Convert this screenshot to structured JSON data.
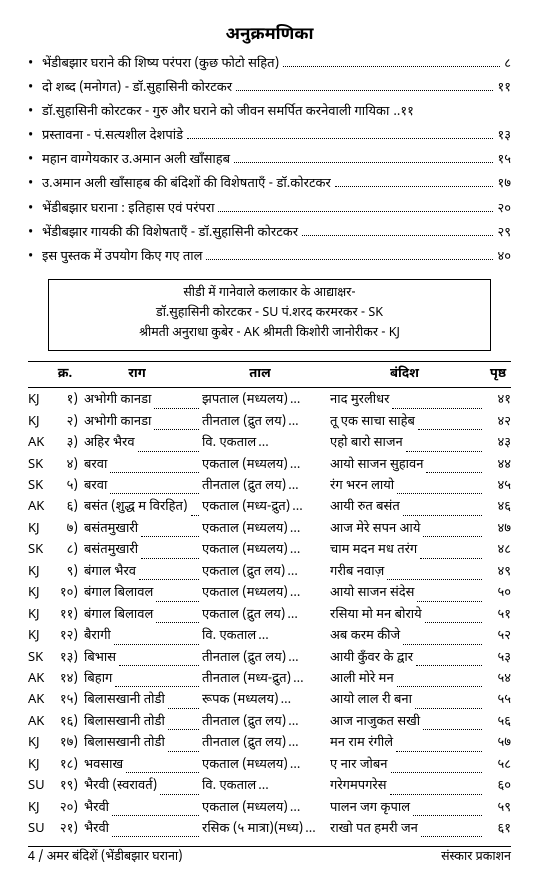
{
  "title": "अनुक्रमणिका",
  "toc": [
    {
      "text": "भेंडीबझार घराने की शिष्य परंपरा (कुछ फोटो सहित)",
      "page": "८"
    },
    {
      "text": "दो शब्द (मनोगत)   -  डॉ.सुहासिनी कोरटकर",
      "page": "११"
    },
    {
      "text": "डॉ.सुहासिनी कोरटकर - गुरु और घराने को जीवन समर्पित करनेवाली गायिका",
      "page": "११",
      "no_leader": true
    },
    {
      "text": "प्रस्तावना   -  पं.सत्यशील देशपांडे",
      "page": "१३"
    },
    {
      "text": "महान वाग्गेयकार उ.अमान अली खाँसाहब",
      "page": "१५"
    },
    {
      "text": "उ.अमान अली खाँसाहब की बंदिशों की विशेषताएँ   -  डॉ.कोरटकर",
      "page": "१७"
    },
    {
      "text": "भेंडीबझार घराना  :  इतिहास एवं परंपरा",
      "page": "२०"
    },
    {
      "text": "भेंडीबझार गायकी की विशेषताएँ   -  डॉ.सुहासिनी कोरटकर",
      "page": "२९"
    },
    {
      "text": "इस पुस्तक में उपयोग किए गए ताल",
      "page": "४०"
    }
  ],
  "artistbox": {
    "line1": "सीडी में गानेवाले कलाकार के आद्याक्षर-",
    "line2": "डॉ.सुहासिनी कोरटकर - SU      पं.शरद करमरकर - SK",
    "line3": "श्रीमती अनुराधा कुबेर - AK      श्रीमती किशोरी जानोरीकर - KJ"
  },
  "headers": {
    "no": "क्र.",
    "raag": "राग",
    "taal": "ताल",
    "band": "बंदिश",
    "page": "पृष्ठ"
  },
  "rows": [
    {
      "a": "KJ",
      "n": "१)",
      "r": "अभोगी कानडा",
      "t": "झपताल (मध्यलय)",
      "b": "नाद मुरलीधर",
      "p": "४१"
    },
    {
      "a": "KJ",
      "n": "२)",
      "r": "अभोगी कानडा",
      "t": "तीनताल (द्रुत लय)",
      "b": "तू एक साचा साहेब",
      "p": "४२"
    },
    {
      "a": "AK",
      "n": "३)",
      "r": "अहिर भैरव",
      "t": "वि. एकताल",
      "b": "एहो बारो साजन",
      "p": "४३"
    },
    {
      "a": "SK",
      "n": "४)",
      "r": "बरवा",
      "t": "एकताल (मध्यलय)",
      "b": "आयो साजन सुहावन",
      "p": "४४"
    },
    {
      "a": "SK",
      "n": "५)",
      "r": "बरवा",
      "t": "तीनताल (द्रुत लय)",
      "b": "रंग भरन लायो",
      "p": "४५"
    },
    {
      "a": "AK",
      "n": "६)",
      "r": "बसंत (शुद्ध म विरहित)",
      "t": "एकताल (मध्य-द्रुत)",
      "b": "आयी रुत बसंत",
      "p": "४६"
    },
    {
      "a": "KJ",
      "n": "७)",
      "r": "बसंतमुखारी",
      "t": "एकताल (मध्यलय)",
      "b": "आज मेरे सपन आये",
      "p": "४७"
    },
    {
      "a": "SK",
      "n": "८)",
      "r": "बसंतमुखारी",
      "t": "एकताल (मध्यलय)",
      "b": "चाम मदन मध तरंग",
      "p": "४८"
    },
    {
      "a": "KJ",
      "n": "९)",
      "r": "बंगाल भैरव",
      "t": "एकताल (द्रुत लय)",
      "b": "गरीब नवाज़",
      "p": "४९"
    },
    {
      "a": "KJ",
      "n": "१०)",
      "r": "बंगाल बिलावल",
      "t": "एकताल (मध्यलय)",
      "b": "आयो साजन संदेस",
      "p": "५०"
    },
    {
      "a": "KJ",
      "n": "११)",
      "r": "बंगाल बिलावल",
      "t": "एकताल (द्रुत लय)",
      "b": "रसिया मो मन बोराये",
      "p": "५१"
    },
    {
      "a": "KJ",
      "n": "१२)",
      "r": "बैरागी",
      "t": "वि. एकताल",
      "b": "अब करम कीजे",
      "p": "५२"
    },
    {
      "a": "SK",
      "n": "१३)",
      "r": "बिभास",
      "t": "तीनताल (द्रुत लय)",
      "b": "आयी कुँवर के द्वार",
      "p": "५३"
    },
    {
      "a": "AK",
      "n": "१४)",
      "r": "बिहाग",
      "t": "तीनताल (मध्य-द्रुत)",
      "b": "आली मोरे मन",
      "p": "५४"
    },
    {
      "a": "AK",
      "n": "१५)",
      "r": "बिलासखानी तोडी",
      "t": "रूपक (मध्यलय)",
      "b": "आयो लाल री बना",
      "p": "५५"
    },
    {
      "a": "AK",
      "n": "१६)",
      "r": "बिलासखानी तोडी",
      "t": "तीनताल (द्रुत लय)",
      "b": "आज नाजुकत सखी",
      "p": "५६"
    },
    {
      "a": "KJ",
      "n": "१७)",
      "r": "बिलासखानी तोडी",
      "t": "तीनताल (द्रुत लय)",
      "b": "मन राम रंगीले",
      "p": "५७"
    },
    {
      "a": "KJ",
      "n": "१८)",
      "r": "भवसाख",
      "t": "एकताल (मध्यलय)",
      "b": "ए नार जोबन",
      "p": "५८"
    },
    {
      "a": "SU",
      "n": "१९)",
      "r": "भैरवी (स्वरावर्त)",
      "t": "वि. एकताल",
      "b": "गरेगमपगरेस",
      "p": "६०"
    },
    {
      "a": "KJ",
      "n": "२०)",
      "r": "भैरवी",
      "t": "एकताल (मध्यलय)",
      "b": "पालन जग कृपाल",
      "p": "५९"
    },
    {
      "a": "SU",
      "n": "२१)",
      "r": "भैरवी",
      "t": "रसिक (५ मात्रा)(मध्य)",
      "b": "राखो पत हमरी जन",
      "p": "६१"
    }
  ],
  "footer": {
    "left": "4 / अमर बंदिशें (भेंडीबझार घराना)",
    "right": "संस्कार प्रकाशन"
  }
}
